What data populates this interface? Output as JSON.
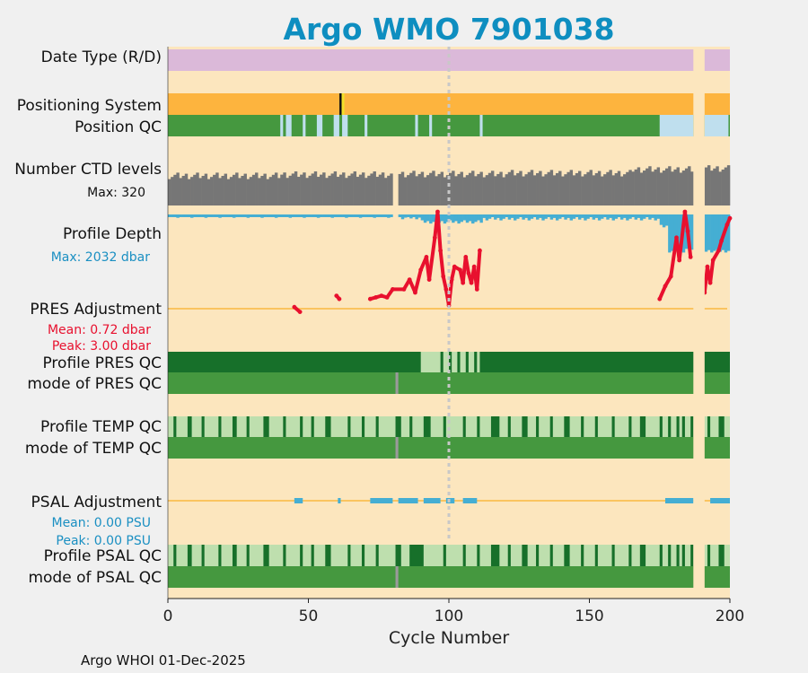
{
  "chart_data": {
    "type": "status-strip",
    "title": "Argo WMO 7901038",
    "xlabel": "Cycle Number",
    "xlim": [
      0,
      200
    ],
    "xticks": [
      "0",
      "50",
      "100",
      "150",
      "200"
    ],
    "footer": "Argo WHOI 01-Dec-2025",
    "gap": [
      187,
      191
    ],
    "marker_cycle": 100,
    "colors": {
      "title": "#0e8ec0",
      "background": "#fce6be",
      "date_type": "#dbb9d9",
      "positioning": "#fdb43e",
      "qc_good": "#45983f",
      "qc_light": "#bfdfee",
      "qc_dark": "#17702a",
      "qc_pale": "#bedfae",
      "ctd": "#767676",
      "depth": "#45aed3",
      "adjust_line": "#f9b840",
      "adjust_red": "#e8102e",
      "adjust_blue": "#45aed3",
      "grid": "#c8c8c8"
    },
    "rows": {
      "date_type": "Date Type (R/D)",
      "positioning": "Positioning System",
      "position_qc": "Position QC",
      "ctd_levels": "Number CTD levels",
      "ctd_max": "Max: 320",
      "profile_depth": "Profile Depth",
      "depth_max": "Max: 2032 dbar",
      "pres_adj": "PRES Adjustment",
      "pres_mean": "Mean: 0.72 dbar",
      "pres_peak": "Peak: 3.00 dbar",
      "prof_pres_qc": "Profile PRES QC",
      "mode_pres_qc": "mode of PRES QC",
      "prof_temp_qc": "Profile TEMP QC",
      "mode_temp_qc": "mode of TEMP QC",
      "psal_adj": "PSAL Adjustment",
      "psal_mean": "Mean: 0.00 PSU",
      "psal_peak": "Peak: 0.00 PSU",
      "prof_psal_qc": "Profile PSAL QC",
      "mode_psal_qc": "mode of PSAL QC"
    },
    "positioning_marker_cycle": 62,
    "position_qc_light_ranges": [
      [
        40,
        41
      ],
      [
        42,
        44
      ],
      [
        48,
        49
      ],
      [
        53,
        55
      ],
      [
        59,
        61
      ],
      [
        62,
        64
      ],
      [
        70,
        71
      ],
      [
        88,
        89
      ],
      [
        93,
        94
      ],
      [
        111,
        112
      ],
      [
        175,
        187
      ],
      [
        191,
        199.5
      ]
    ],
    "ctd_levels_max": 320,
    "ctd_levels": [
      {
        "from": 0,
        "to": 40,
        "value": 240
      },
      {
        "from": 40,
        "to": 80,
        "value": 250
      },
      {
        "from": 82,
        "to": 120,
        "value": 255
      },
      {
        "from": 120,
        "to": 165,
        "value": 262
      },
      {
        "from": 165,
        "to": 187,
        "value": 292
      },
      {
        "from": 191,
        "to": 200,
        "value": 300
      }
    ],
    "profile_depth_max": 2032,
    "profile_depth": [
      {
        "from": 0,
        "to": 80,
        "value": 60
      },
      {
        "from": 82,
        "to": 90,
        "value": 110
      },
      {
        "from": 90,
        "to": 112,
        "value": 260
      },
      {
        "from": 112,
        "to": 175,
        "value": 150
      },
      {
        "from": 175,
        "to": 178,
        "value": 420
      },
      {
        "from": 178,
        "to": 184,
        "value": 1270
      },
      {
        "from": 184,
        "to": 187,
        "value": 1200
      },
      {
        "from": 191,
        "to": 200,
        "value": 1270
      }
    ],
    "pres_adjustment_min": -1,
    "pres_adjustment_max": 3,
    "pres_adjustment": [
      {
        "x": 45,
        "y": 0.05
      },
      {
        "x": 47,
        "y": -0.1
      },
      {
        "x": 60,
        "y": 0.4
      },
      {
        "x": 61,
        "y": 0.3
      },
      {
        "x": 72,
        "y": 0.3
      },
      {
        "x": 74,
        "y": 0.35
      },
      {
        "x": 76,
        "y": 0.4
      },
      {
        "x": 78,
        "y": 0.35
      },
      {
        "x": 80,
        "y": 0.6
      },
      {
        "x": 84,
        "y": 0.6
      },
      {
        "x": 86,
        "y": 0.9
      },
      {
        "x": 88,
        "y": 0.5
      },
      {
        "x": 90,
        "y": 1.2
      },
      {
        "x": 92,
        "y": 1.6
      },
      {
        "x": 93,
        "y": 0.9
      },
      {
        "x": 95,
        "y": 2.2
      },
      {
        "x": 96,
        "y": 3.0
      },
      {
        "x": 97,
        "y": 1.8
      },
      {
        "x": 98,
        "y": 1.0
      },
      {
        "x": 99,
        "y": 0.6
      },
      {
        "x": 100,
        "y": 0.1
      },
      {
        "x": 101,
        "y": 0.9
      },
      {
        "x": 102,
        "y": 1.3
      },
      {
        "x": 104,
        "y": 1.2
      },
      {
        "x": 105,
        "y": 0.8
      },
      {
        "x": 106,
        "y": 1.6
      },
      {
        "x": 107,
        "y": 1.1
      },
      {
        "x": 108,
        "y": 0.8
      },
      {
        "x": 109,
        "y": 1.3
      },
      {
        "x": 110,
        "y": 0.6
      },
      {
        "x": 111,
        "y": 1.8
      },
      {
        "x": 175,
        "y": 0.3
      },
      {
        "x": 177,
        "y": 0.7
      },
      {
        "x": 179,
        "y": 1.0
      },
      {
        "x": 181,
        "y": 2.2
      },
      {
        "x": 182,
        "y": 1.5
      },
      {
        "x": 184,
        "y": 3.0
      },
      {
        "x": 185,
        "y": 2.4
      },
      {
        "x": 186,
        "y": 1.6
      },
      {
        "x": 191,
        "y": 0.5
      },
      {
        "x": 192,
        "y": 1.3
      },
      {
        "x": 193,
        "y": 0.8
      },
      {
        "x": 194,
        "y": 1.5
      },
      {
        "x": 196,
        "y": 1.8
      },
      {
        "x": 197,
        "y": 2.1
      },
      {
        "x": 199,
        "y": 2.6
      },
      {
        "x": 200,
        "y": 2.8
      }
    ],
    "psal_adjustment_segments": [
      [
        45,
        48
      ],
      [
        60.5,
        61.5
      ],
      [
        72,
        80
      ],
      [
        82,
        89
      ],
      [
        91,
        97
      ],
      [
        99,
        102
      ],
      [
        105,
        110
      ],
      [
        177,
        187
      ],
      [
        193,
        200
      ]
    ],
    "profile_pres_qc_pale_ranges": [
      [
        90,
        97
      ],
      [
        98,
        100
      ],
      [
        101,
        103
      ],
      [
        104,
        106
      ],
      [
        107,
        109
      ],
      [
        110,
        111
      ]
    ],
    "profile_temp_qc_dark_ranges": [
      [
        2,
        3
      ],
      [
        7,
        8.5
      ],
      [
        12,
        13
      ],
      [
        18,
        19
      ],
      [
        23,
        24.5
      ],
      [
        28,
        29
      ],
      [
        34,
        36
      ],
      [
        41,
        42
      ],
      [
        47,
        48
      ],
      [
        51,
        52
      ],
      [
        56,
        58
      ],
      [
        64,
        65
      ],
      [
        69,
        70
      ],
      [
        74,
        75
      ],
      [
        81,
        83
      ],
      [
        86,
        87
      ],
      [
        91,
        93.5
      ],
      [
        98,
        99
      ],
      [
        105,
        106
      ],
      [
        110,
        111
      ],
      [
        115,
        118
      ],
      [
        121,
        122
      ],
      [
        126,
        128
      ],
      [
        131,
        132
      ],
      [
        136,
        137
      ],
      [
        141,
        143
      ],
      [
        147,
        148
      ],
      [
        152,
        153
      ],
      [
        158,
        159
      ],
      [
        164,
        165
      ],
      [
        168,
        170
      ],
      [
        175,
        176
      ],
      [
        178,
        179
      ],
      [
        181,
        182
      ],
      [
        183,
        184
      ],
      [
        186,
        187
      ],
      [
        192,
        193
      ],
      [
        196,
        198
      ]
    ],
    "profile_psal_qc_dark_ranges": [
      [
        2,
        3
      ],
      [
        7,
        8.5
      ],
      [
        12,
        13
      ],
      [
        18,
        19
      ],
      [
        23,
        24.5
      ],
      [
        28,
        29
      ],
      [
        34,
        36
      ],
      [
        41,
        42
      ],
      [
        47,
        48
      ],
      [
        51,
        52
      ],
      [
        56,
        58
      ],
      [
        64,
        65
      ],
      [
        69,
        70
      ],
      [
        74,
        75
      ],
      [
        81,
        83
      ],
      [
        86,
        91
      ],
      [
        98,
        99
      ],
      [
        105,
        106
      ],
      [
        110,
        111
      ],
      [
        115,
        118
      ],
      [
        121,
        122
      ],
      [
        126,
        128
      ],
      [
        131,
        132
      ],
      [
        136,
        137
      ],
      [
        141,
        143
      ],
      [
        147,
        148
      ],
      [
        152,
        153
      ],
      [
        158,
        159
      ],
      [
        164,
        165
      ],
      [
        168,
        170
      ],
      [
        175,
        176
      ],
      [
        178,
        179
      ],
      [
        181,
        182
      ],
      [
        183,
        184
      ],
      [
        186,
        187
      ],
      [
        192,
        193
      ],
      [
        196,
        198
      ]
    ],
    "mode_qc_gray_cycle": 81
  }
}
